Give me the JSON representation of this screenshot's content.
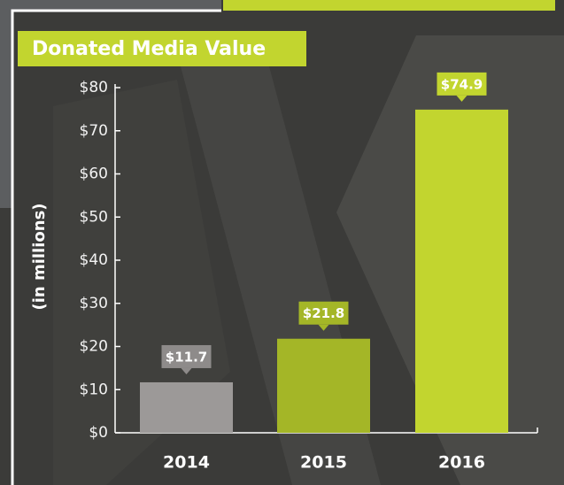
{
  "chart_data": {
    "type": "bar",
    "title": "Donated Media Value",
    "y_label": "(in millions)",
    "categories": [
      "2014",
      "2015",
      "2016"
    ],
    "values": [
      11.7,
      21.8,
      74.9
    ],
    "value_labels": [
      "$11.7",
      "$21.8",
      "$74.9"
    ],
    "colors": [
      "#9c9998",
      "#a4b627",
      "#c2d52f"
    ],
    "label_colors": [
      "#8e8b8a",
      "#a4b627",
      "#c2d52f"
    ],
    "ylim": [
      0,
      80
    ],
    "yticks": [
      {
        "value": 0,
        "label": "$0"
      },
      {
        "value": 10,
        "label": "$10"
      },
      {
        "value": 20,
        "label": "$20"
      },
      {
        "value": 30,
        "label": "$30"
      },
      {
        "value": 40,
        "label": "$40"
      },
      {
        "value": 50,
        "label": "$50"
      },
      {
        "value": 60,
        "label": "$60"
      },
      {
        "value": 70,
        "label": "$70"
      },
      {
        "value": 80,
        "label": "$80"
      }
    ]
  }
}
